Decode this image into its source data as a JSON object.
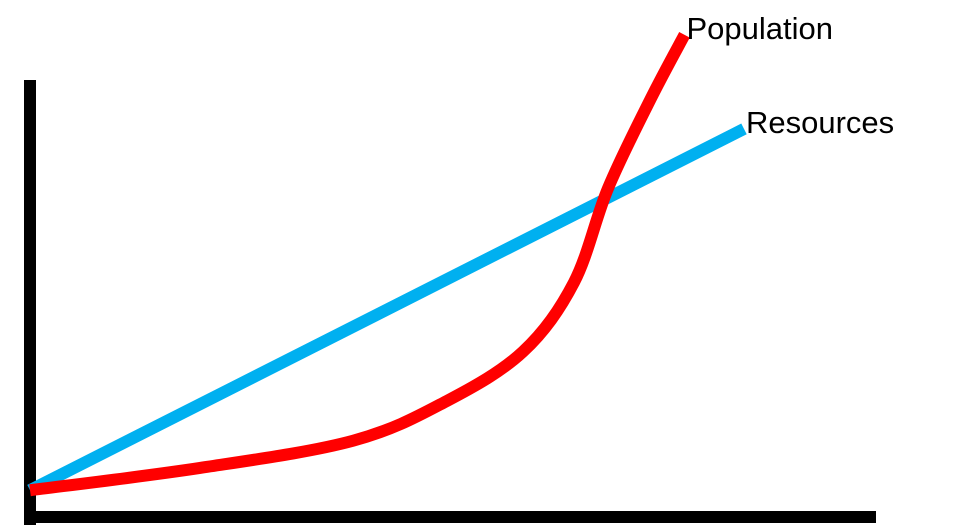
{
  "chart_data": {
    "type": "line",
    "xlim": [
      0,
      100
    ],
    "ylim": [
      0,
      100
    ],
    "series": [
      {
        "name": "Resources",
        "color": "#00b0f0",
        "x": [
          0,
          84
        ],
        "values": [
          5,
          78
        ]
      },
      {
        "name": "Population",
        "color": "#ff0000",
        "x": [
          0,
          20,
          38,
          49,
          58,
          64,
          68,
          73,
          77
        ],
        "values": [
          5,
          9.5,
          15,
          23,
          33,
          47,
          66,
          84,
          97
        ]
      }
    ]
  }
}
